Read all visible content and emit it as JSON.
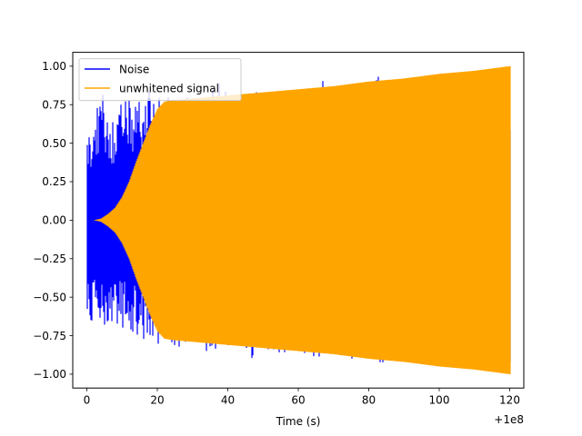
{
  "chart_data": {
    "type": "line",
    "title": "",
    "xlabel": "Time (s)",
    "ylabel": "",
    "x_offset_label": "+1e8",
    "xlim": [
      -4,
      124
    ],
    "ylim": [
      -1.09,
      1.09
    ],
    "xticks": [
      0,
      20,
      40,
      60,
      80,
      100,
      120
    ],
    "xtick_labels": [
      "0",
      "20",
      "40",
      "60",
      "80",
      "100",
      "120"
    ],
    "yticks": [
      1.0,
      0.75,
      0.5,
      0.25,
      0.0,
      -0.25,
      -0.5,
      -0.75,
      -1.0
    ],
    "ytick_labels": [
      "1.00",
      "0.75",
      "0.50",
      "0.25",
      "0.00",
      "−0.25",
      "−0.50",
      "−0.75",
      "−1.00"
    ],
    "grid": false,
    "legend": "top-left",
    "series": [
      {
        "name": "Noise",
        "color": "#0000ff",
        "x_range": [
          0,
          120
        ],
        "upper_envelope": [
          [
            0,
            0.55
          ],
          [
            2,
            0.62
          ],
          [
            4,
            0.85
          ],
          [
            6,
            0.72
          ],
          [
            8,
            0.62
          ],
          [
            10,
            0.78
          ],
          [
            12,
            0.78
          ],
          [
            14,
            0.78
          ],
          [
            16,
            0.8
          ],
          [
            18,
            0.85
          ],
          [
            20,
            0.8
          ],
          [
            25,
            0.8
          ],
          [
            30,
            0.8
          ],
          [
            35,
            0.8
          ],
          [
            36,
            0.96
          ],
          [
            40,
            0.82
          ],
          [
            47,
            0.85
          ],
          [
            50,
            0.82
          ],
          [
            55,
            0.84
          ],
          [
            60,
            0.84
          ],
          [
            65,
            0.84
          ],
          [
            67,
            0.96
          ],
          [
            70,
            0.86
          ],
          [
            80,
            0.88
          ],
          [
            81,
            0.99
          ],
          [
            90,
            0.9
          ],
          [
            100,
            0.92
          ],
          [
            110,
            0.94
          ],
          [
            120,
            0.96
          ]
        ],
        "lower_envelope": [
          [
            0,
            -0.75
          ],
          [
            2,
            -0.62
          ],
          [
            4,
            -0.65
          ],
          [
            6,
            -0.72
          ],
          [
            8,
            -0.7
          ],
          [
            10,
            -0.7
          ],
          [
            12,
            -0.72
          ],
          [
            14,
            -0.78
          ],
          [
            16,
            -0.78
          ],
          [
            18,
            -0.82
          ],
          [
            20,
            -0.82
          ],
          [
            25,
            -0.82
          ],
          [
            30,
            -0.85
          ],
          [
            35,
            -0.85
          ],
          [
            40,
            -0.82
          ],
          [
            45,
            -0.84
          ],
          [
            47,
            -0.94
          ],
          [
            50,
            -0.85
          ],
          [
            55,
            -0.86
          ],
          [
            59,
            -0.96
          ],
          [
            60,
            -0.88
          ],
          [
            70,
            -0.9
          ],
          [
            80,
            -0.92
          ],
          [
            90,
            -0.93
          ],
          [
            100,
            -0.95
          ],
          [
            110,
            -0.97
          ],
          [
            120,
            -0.99
          ]
        ]
      },
      {
        "name": "unwhitened signal",
        "color": "#ffa500",
        "x_range": [
          0,
          120
        ],
        "upper_envelope": [
          [
            0,
            0.0
          ],
          [
            2,
            0.0
          ],
          [
            4,
            0.01
          ],
          [
            6,
            0.04
          ],
          [
            8,
            0.08
          ],
          [
            10,
            0.15
          ],
          [
            12,
            0.25
          ],
          [
            14,
            0.38
          ],
          [
            16,
            0.5
          ],
          [
            18,
            0.62
          ],
          [
            20,
            0.72
          ],
          [
            22,
            0.77
          ],
          [
            25,
            0.78
          ],
          [
            30,
            0.79
          ],
          [
            40,
            0.81
          ],
          [
            50,
            0.83
          ],
          [
            60,
            0.85
          ],
          [
            70,
            0.87
          ],
          [
            80,
            0.9
          ],
          [
            90,
            0.92
          ],
          [
            100,
            0.95
          ],
          [
            110,
            0.97
          ],
          [
            120,
            1.0
          ]
        ],
        "lower_envelope": [
          [
            0,
            0.0
          ],
          [
            2,
            0.0
          ],
          [
            4,
            -0.01
          ],
          [
            6,
            -0.04
          ],
          [
            8,
            -0.08
          ],
          [
            10,
            -0.15
          ],
          [
            12,
            -0.25
          ],
          [
            14,
            -0.38
          ],
          [
            16,
            -0.5
          ],
          [
            18,
            -0.62
          ],
          [
            20,
            -0.72
          ],
          [
            22,
            -0.77
          ],
          [
            25,
            -0.78
          ],
          [
            30,
            -0.79
          ],
          [
            40,
            -0.81
          ],
          [
            50,
            -0.83
          ],
          [
            60,
            -0.85
          ],
          [
            70,
            -0.87
          ],
          [
            80,
            -0.9
          ],
          [
            90,
            -0.92
          ],
          [
            100,
            -0.95
          ],
          [
            110,
            -0.97
          ],
          [
            120,
            -1.0
          ]
        ]
      }
    ]
  }
}
